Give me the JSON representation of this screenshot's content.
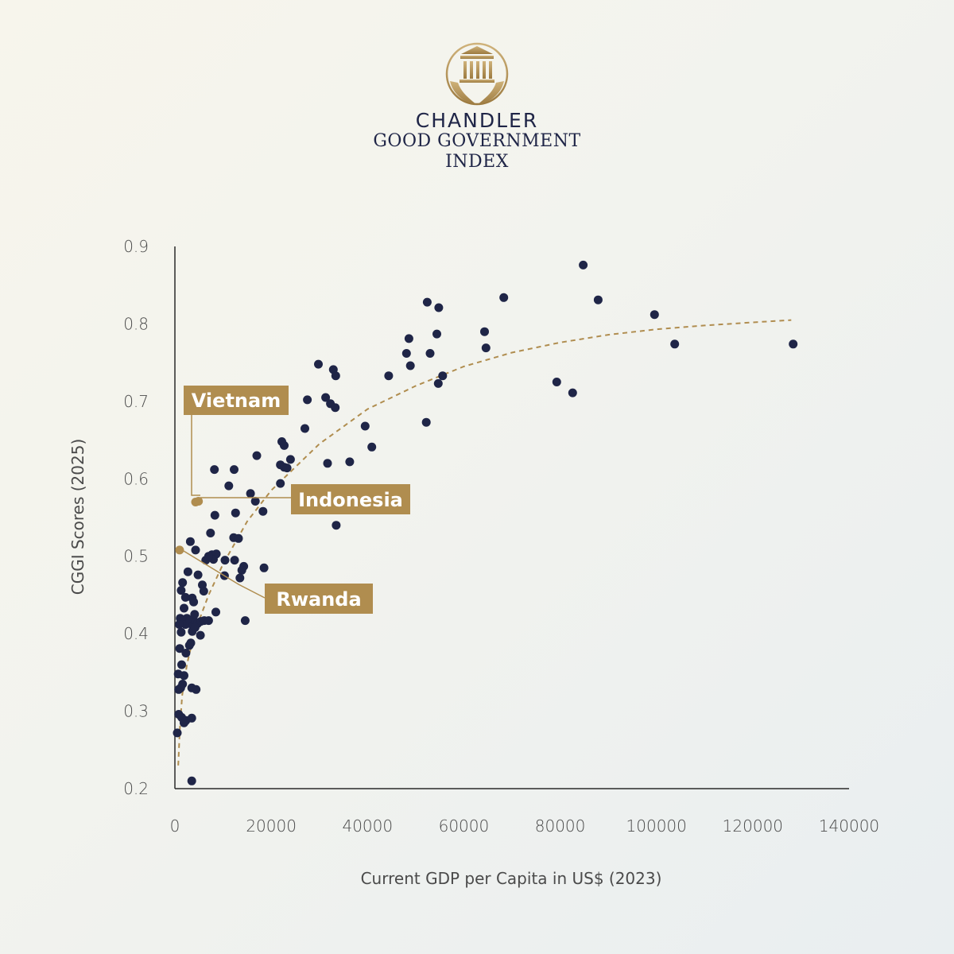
{
  "brand": {
    "line1": "CHANDLER",
    "line2": "GOOD GOVERNMENT",
    "line3": "INDEX",
    "logo_icon": "pillared-building-in-hands-icon",
    "gold": "#b08d4f",
    "navy": "#1f2547"
  },
  "chart_data": {
    "type": "scatter",
    "title": "",
    "xlabel": "Current GDP per Capita in US$ (2023)",
    "ylabel": "CGGI Scores (2025)",
    "xlim": [
      0,
      140000
    ],
    "ylim": [
      0.2,
      0.9
    ],
    "x_ticks": [
      0,
      20000,
      40000,
      60000,
      80000,
      100000,
      120000,
      140000
    ],
    "x_tick_labels": [
      "0",
      "20000",
      "40000",
      "60000",
      "80000",
      "100000",
      "120000",
      "140000"
    ],
    "y_ticks": [
      0.2,
      0.3,
      0.4,
      0.5,
      0.6,
      0.7,
      0.8,
      0.9
    ],
    "y_tick_labels": [
      "0.2",
      "0.3",
      "0.4",
      "0.5",
      "0.6",
      "0.7",
      "0.8",
      "0.9"
    ],
    "grid": false,
    "point_color": "#1f2547",
    "highlight_color": "#b08d4f",
    "trendline": {
      "style": "dashed",
      "color": "#b08d4f",
      "points": [
        [
          700,
          0.23
        ],
        [
          1000,
          0.275
        ],
        [
          1500,
          0.32
        ],
        [
          2500,
          0.36
        ],
        [
          4000,
          0.4
        ],
        [
          7000,
          0.45
        ],
        [
          10000,
          0.49
        ],
        [
          15000,
          0.545
        ],
        [
          20000,
          0.585
        ],
        [
          30000,
          0.645
        ],
        [
          40000,
          0.69
        ],
        [
          50000,
          0.72
        ],
        [
          60000,
          0.745
        ],
        [
          70000,
          0.763
        ],
        [
          80000,
          0.776
        ],
        [
          90000,
          0.786
        ],
        [
          100000,
          0.793
        ],
        [
          110000,
          0.798
        ],
        [
          120000,
          0.802
        ],
        [
          128000,
          0.805
        ]
      ]
    },
    "points": [
      [
        84800,
        0.876
      ],
      [
        68300,
        0.834
      ],
      [
        52400,
        0.828
      ],
      [
        54800,
        0.821
      ],
      [
        87900,
        0.831
      ],
      [
        99600,
        0.812
      ],
      [
        103800,
        0.774
      ],
      [
        128400,
        0.774
      ],
      [
        64300,
        0.79
      ],
      [
        64600,
        0.769
      ],
      [
        54400,
        0.787
      ],
      [
        48600,
        0.781
      ],
      [
        48100,
        0.762
      ],
      [
        53000,
        0.762
      ],
      [
        48900,
        0.746
      ],
      [
        44400,
        0.733
      ],
      [
        55600,
        0.733
      ],
      [
        54700,
        0.723
      ],
      [
        79300,
        0.725
      ],
      [
        82600,
        0.711
      ],
      [
        52200,
        0.673
      ],
      [
        29800,
        0.748
      ],
      [
        32900,
        0.741
      ],
      [
        33400,
        0.733
      ],
      [
        27500,
        0.702
      ],
      [
        31300,
        0.705
      ],
      [
        32300,
        0.697
      ],
      [
        33300,
        0.692
      ],
      [
        39500,
        0.668
      ],
      [
        27000,
        0.665
      ],
      [
        22200,
        0.648
      ],
      [
        22700,
        0.643
      ],
      [
        40900,
        0.641
      ],
      [
        24000,
        0.625
      ],
      [
        31700,
        0.62
      ],
      [
        36300,
        0.622
      ],
      [
        17000,
        0.63
      ],
      [
        21900,
        0.618
      ],
      [
        22700,
        0.615
      ],
      [
        23300,
        0.614
      ],
      [
        21900,
        0.594
      ],
      [
        8200,
        0.612
      ],
      [
        12300,
        0.612
      ],
      [
        11200,
        0.591
      ],
      [
        15700,
        0.581
      ],
      [
        16700,
        0.571
      ],
      [
        18300,
        0.558
      ],
      [
        33500,
        0.54
      ],
      [
        8300,
        0.553
      ],
      [
        12600,
        0.556
      ],
      [
        12200,
        0.524
      ],
      [
        13200,
        0.523
      ],
      [
        7400,
        0.53
      ],
      [
        7700,
        0.502
      ],
      [
        8600,
        0.503
      ],
      [
        8000,
        0.496
      ],
      [
        10400,
        0.495
      ],
      [
        12400,
        0.495
      ],
      [
        6400,
        0.495
      ],
      [
        7000,
        0.5
      ],
      [
        14300,
        0.487
      ],
      [
        13900,
        0.482
      ],
      [
        18500,
        0.485
      ],
      [
        13500,
        0.472
      ],
      [
        10300,
        0.475
      ],
      [
        3200,
        0.519
      ],
      [
        4300,
        0.508
      ],
      [
        4800,
        0.476
      ],
      [
        2700,
        0.48
      ],
      [
        1600,
        0.466
      ],
      [
        5700,
        0.463
      ],
      [
        6000,
        0.455
      ],
      [
        1300,
        0.456
      ],
      [
        3600,
        0.446
      ],
      [
        2200,
        0.447
      ],
      [
        3900,
        0.441
      ],
      [
        4100,
        0.425
      ],
      [
        8500,
        0.428
      ],
      [
        1900,
        0.433
      ],
      [
        2500,
        0.42
      ],
      [
        1100,
        0.42
      ],
      [
        1700,
        0.417
      ],
      [
        2200,
        0.412
      ],
      [
        3100,
        0.417
      ],
      [
        3700,
        0.41
      ],
      [
        4300,
        0.415
      ],
      [
        4700,
        0.413
      ],
      [
        5400,
        0.416
      ],
      [
        6100,
        0.417
      ],
      [
        7000,
        0.417
      ],
      [
        14600,
        0.417
      ],
      [
        900,
        0.412
      ],
      [
        1300,
        0.402
      ],
      [
        3600,
        0.403
      ],
      [
        4200,
        0.408
      ],
      [
        5300,
        0.398
      ],
      [
        1000,
        0.381
      ],
      [
        3000,
        0.385
      ],
      [
        3300,
        0.388
      ],
      [
        2300,
        0.375
      ],
      [
        1400,
        0.36
      ],
      [
        700,
        0.348
      ],
      [
        1900,
        0.346
      ],
      [
        1600,
        0.335
      ],
      [
        800,
        0.328
      ],
      [
        1200,
        0.33
      ],
      [
        3500,
        0.33
      ],
      [
        4400,
        0.328
      ],
      [
        800,
        0.296
      ],
      [
        1400,
        0.292
      ],
      [
        2300,
        0.288
      ],
      [
        3500,
        0.291
      ],
      [
        1900,
        0.285
      ],
      [
        500,
        0.272
      ],
      [
        3500,
        0.21
      ]
    ],
    "highlights": [
      {
        "label": "Vietnam",
        "x": 4300,
        "y": 0.57
      },
      {
        "label": "Indonesia",
        "x": 4900,
        "y": 0.571
      },
      {
        "label": "Rwanda",
        "x": 980,
        "y": 0.508
      }
    ]
  }
}
